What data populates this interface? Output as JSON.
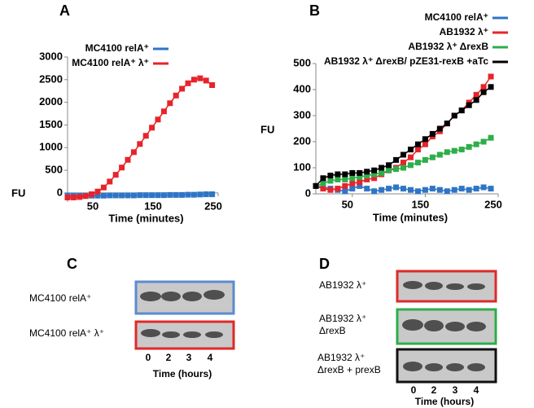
{
  "chart_data": [
    {
      "type": "line",
      "title": "A",
      "xlabel": "Time (minutes)",
      "ylabel": "FU",
      "x": [
        0,
        10,
        20,
        30,
        40,
        50,
        60,
        70,
        80,
        90,
        100,
        110,
        120,
        130,
        140,
        150,
        160,
        170,
        180,
        190,
        200,
        210,
        220,
        230,
        240
      ],
      "xlim": [
        0,
        250
      ],
      "xticks": [
        50,
        150,
        250
      ],
      "ylim": [
        -200,
        3000
      ],
      "yticks": [
        0,
        500,
        1000,
        1500,
        2000,
        2500,
        3000
      ],
      "legend": "top-left",
      "series": [
        {
          "name": "MC4100 relA⁺",
          "color": "#2e75c6",
          "values": [
            -60,
            -60,
            -60,
            -60,
            -60,
            -60,
            -60,
            -55,
            -55,
            -55,
            -55,
            -55,
            -50,
            -50,
            -50,
            -50,
            -50,
            -45,
            -45,
            -45,
            -40,
            -40,
            -35,
            -30,
            -30
          ]
        },
        {
          "name": "MC4100 relA⁺ λ⁺",
          "color": "#e8232a",
          "values": [
            -100,
            -100,
            -90,
            -70,
            -30,
            30,
            120,
            250,
            400,
            560,
            730,
            900,
            1080,
            1260,
            1440,
            1620,
            1800,
            1980,
            2150,
            2300,
            2420,
            2500,
            2530,
            2480,
            2380
          ]
        }
      ]
    },
    {
      "type": "line",
      "title": "B",
      "xlabel": "Time (minutes)",
      "ylabel": "FU",
      "x": [
        0,
        10,
        20,
        30,
        40,
        50,
        60,
        70,
        80,
        90,
        100,
        110,
        120,
        130,
        140,
        150,
        160,
        170,
        180,
        190,
        200,
        210,
        220,
        230,
        240
      ],
      "xlim": [
        0,
        250
      ],
      "xticks": [
        50,
        150,
        250
      ],
      "ylim": [
        0,
        500
      ],
      "yticks": [
        0,
        100,
        200,
        300,
        400,
        500
      ],
      "legend": "top-right",
      "series": [
        {
          "name": "MC4100 relA⁺",
          "color": "#2e75c6",
          "values": [
            30,
            25,
            20,
            15,
            10,
            20,
            30,
            20,
            10,
            15,
            20,
            25,
            20,
            15,
            10,
            15,
            20,
            15,
            10,
            15,
            20,
            15,
            20,
            25,
            20
          ]
        },
        {
          "name": "AB1932 λ⁺",
          "color": "#e8232a",
          "values": [
            30,
            20,
            15,
            20,
            30,
            40,
            45,
            55,
            60,
            75,
            90,
            100,
            120,
            140,
            170,
            190,
            220,
            240,
            270,
            300,
            320,
            350,
            380,
            410,
            450
          ]
        },
        {
          "name": "AB1932 λ⁺ ΔrexB",
          "color": "#2eae4a",
          "values": [
            30,
            40,
            50,
            55,
            55,
            60,
            65,
            70,
            75,
            80,
            90,
            95,
            100,
            110,
            120,
            130,
            140,
            150,
            160,
            165,
            170,
            180,
            190,
            200,
            215
          ]
        },
        {
          "name": "AB1932 λ⁺ ΔrexB/ pZE31-rexB +aTc",
          "color": "#000000",
          "values": [
            30,
            60,
            70,
            75,
            75,
            80,
            80,
            85,
            90,
            100,
            110,
            130,
            150,
            170,
            190,
            210,
            230,
            250,
            270,
            300,
            320,
            340,
            360,
            390,
            410
          ]
        }
      ]
    }
  ],
  "blots": [
    {
      "panel": "C",
      "rows": [
        {
          "label": [
            "MC4100 relA⁺"
          ]
        },
        {
          "label": [
            "MC4100 relA⁺ λ⁺"
          ]
        }
      ],
      "lanes": [
        0,
        2,
        3,
        4
      ],
      "xlabel": "Time (hours)"
    },
    {
      "panel": "D",
      "rows": [
        {
          "label": [
            "AB1932 λ⁺"
          ]
        },
        {
          "label": [
            "AB1932 λ⁺",
            "ΔrexB"
          ]
        },
        {
          "label": [
            "AB1932 λ⁺",
            "ΔrexB + prexB"
          ]
        }
      ],
      "lanes": [
        0,
        2,
        3,
        4
      ],
      "xlabel": "Time (hours)"
    }
  ]
}
